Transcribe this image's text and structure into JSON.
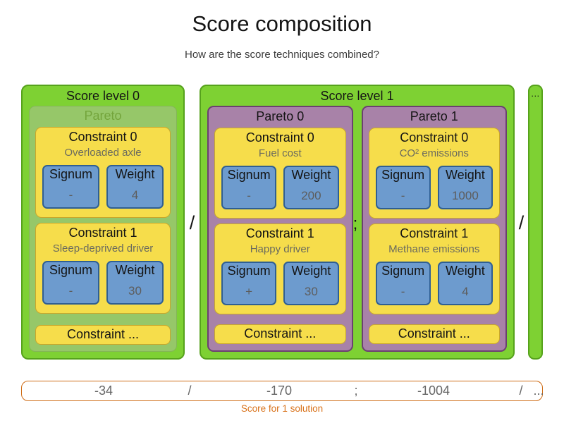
{
  "header": {
    "title": "Score composition",
    "subtitle": "How are the score techniques combined?"
  },
  "labels": {
    "signum": "Signum",
    "weight": "Weight"
  },
  "diagram": {
    "level_separator_1": "/",
    "pareto_separator": ";",
    "level_separator_2": "/",
    "ellipsis_box_label": "...",
    "score_levels": [
      {
        "label": "Score level 0",
        "paretos": [
          {
            "label": "Pareto",
            "constraints": [
              {
                "title": "Constraint 0",
                "description": "Overloaded axle",
                "signum": "-",
                "weight": "4"
              },
              {
                "title": "Constraint 1",
                "description": "Sleep-deprived driver",
                "signum": "-",
                "weight": "30"
              }
            ],
            "more_label": "Constraint ..."
          }
        ]
      },
      {
        "label": "Score level 1",
        "paretos": [
          {
            "label": "Pareto 0",
            "constraints": [
              {
                "title": "Constraint 0",
                "description": "Fuel cost",
                "signum": "-",
                "weight": "200"
              },
              {
                "title": "Constraint 1",
                "description": "Happy driver",
                "signum": "+",
                "weight": "30"
              }
            ],
            "more_label": "Constraint ..."
          },
          {
            "label": "Pareto 1",
            "constraints": [
              {
                "title": "Constraint 0",
                "description": "CO² emissions",
                "signum": "-",
                "weight": "1000"
              },
              {
                "title": "Constraint 1",
                "description": "Methane emissions",
                "signum": "-",
                "weight": "4"
              }
            ],
            "more_label": "Constraint ..."
          }
        ]
      }
    ]
  },
  "score_bar": {
    "level0_score": "-34",
    "separator1": "/",
    "pareto0_score": "-170",
    "separator2": ";",
    "pareto1_score": "-1004",
    "separator3": "/",
    "ellipsis": "...",
    "caption": "Score for 1 solution"
  },
  "colors": {
    "score_level_green": "#7ed133",
    "score_level_border": "#56a21c",
    "pareto_muted_green": "#96c769",
    "pareto_muted_text": "#74a53c",
    "pareto_purple": "#a882a8",
    "pareto_purple_border": "#6b4070",
    "constraint_yellow": "#f6dd4b",
    "constraint_yellow_border": "#c9a72b",
    "signum_weight_blue": "#6d9bce",
    "signum_weight_blue_border": "#2f5f93",
    "score_bar_orange": "#d9731c",
    "value_gray": "#666666"
  }
}
